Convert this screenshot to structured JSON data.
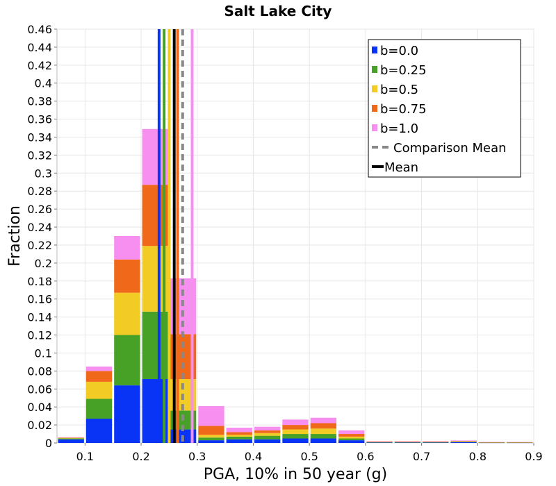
{
  "chart_data": {
    "type": "bar",
    "title": "Salt Lake City",
    "xlabel": "PGA, 10% in 50 year (g)",
    "ylabel": "Fraction",
    "xlim": [
      0.05,
      0.9
    ],
    "ylim": [
      0,
      0.46
    ],
    "xticks": [
      "0.1",
      "0.2",
      "0.3",
      "0.4",
      "0.5",
      "0.6",
      "0.7",
      "0.8",
      "0.9"
    ],
    "xtick_values": [
      0.1,
      0.2,
      0.3,
      0.4,
      0.5,
      0.6,
      0.7,
      0.8,
      0.9
    ],
    "yticks": [
      "0",
      "0.02",
      "0.04",
      "0.06",
      "0.08",
      "0.1",
      "0.12",
      "0.14",
      "0.16",
      "0.18",
      "0.2",
      "0.22",
      "0.24",
      "0.26",
      "0.28",
      "0.3",
      "0.32",
      "0.34",
      "0.36",
      "0.38",
      "0.4",
      "0.42",
      "0.44",
      "0.46"
    ],
    "ytick_values": [
      0,
      0.02,
      0.04,
      0.06,
      0.08,
      0.1,
      0.12,
      0.14,
      0.16,
      0.18,
      0.2,
      0.22,
      0.24,
      0.26,
      0.28,
      0.3,
      0.32,
      0.34,
      0.36,
      0.38,
      0.4,
      0.42,
      0.44,
      0.46
    ],
    "grid": true,
    "stacked": true,
    "bin_width": 0.05,
    "bin_centers": [
      0.075,
      0.125,
      0.175,
      0.225,
      0.275,
      0.325,
      0.375,
      0.425,
      0.475,
      0.525,
      0.575,
      0.625,
      0.675,
      0.725,
      0.775,
      0.825,
      0.875
    ],
    "series": [
      {
        "name": "b=0.0",
        "color": "#0a34f5",
        "values": [
          0.004,
          0.027,
          0.064,
          0.071,
          0.015,
          0.003,
          0.004,
          0.004,
          0.005,
          0.005,
          0.003,
          0.0005,
          0.0005,
          0.0005,
          0.0008,
          0.0003,
          0.0003
        ]
      },
      {
        "name": "b=0.25",
        "color": "#47a127",
        "values": [
          0.001,
          0.022,
          0.056,
          0.075,
          0.021,
          0.003,
          0.003,
          0.004,
          0.005,
          0.005,
          0.002,
          0.0003,
          0.0003,
          0.0003,
          0.0005,
          0.0002,
          0.0002
        ]
      },
      {
        "name": "b=0.5",
        "color": "#f2cb25",
        "values": [
          0.0005,
          0.019,
          0.047,
          0.073,
          0.035,
          0.003,
          0.002,
          0.003,
          0.005,
          0.006,
          0.002,
          0.0003,
          0.0003,
          0.0003,
          0.0004,
          0.0002,
          0.0002
        ]
      },
      {
        "name": "b=0.75",
        "color": "#f0681a",
        "values": [
          0.0005,
          0.012,
          0.037,
          0.068,
          0.05,
          0.01,
          0.003,
          0.003,
          0.005,
          0.006,
          0.003,
          0.0004,
          0.0004,
          0.0004,
          0.0005,
          0.0002,
          0.0002
        ]
      },
      {
        "name": "b=1.0",
        "color": "#f78ff0",
        "values": [
          0.0003,
          0.005,
          0.026,
          0.062,
          0.062,
          0.022,
          0.005,
          0.004,
          0.006,
          0.006,
          0.004,
          0.0005,
          0.0005,
          0.0005,
          0.0006,
          0.0002,
          0.0002
        ]
      }
    ],
    "mean_lines": [
      {
        "series": "b=0.0",
        "x": 0.232,
        "color": "#0a34f5"
      },
      {
        "series": "b=0.25",
        "x": 0.241,
        "color": "#47a127"
      },
      {
        "series": "b=0.5",
        "x": 0.25,
        "color": "#f2cb25"
      },
      {
        "series": "b=0.75",
        "x": 0.265,
        "color": "#f0681a"
      },
      {
        "series": "b=1.0",
        "x": 0.291,
        "color": "#f78ff0"
      }
    ],
    "mean_color": "#000000",
    "mean_x": 0.259,
    "comparison_mean_color": "#888888",
    "comparison_mean_x": 0.274,
    "legend": {
      "placement": "top-right",
      "entries": [
        {
          "label": "b=0.0",
          "color": "#0a34f5",
          "kind": "box"
        },
        {
          "label": "b=0.25",
          "color": "#47a127",
          "kind": "box"
        },
        {
          "label": "b=0.5",
          "color": "#f2cb25",
          "kind": "box"
        },
        {
          "label": "b=0.75",
          "color": "#f0681a",
          "kind": "box"
        },
        {
          "label": "b=1.0",
          "color": "#f78ff0",
          "kind": "box"
        },
        {
          "label": "Comparison Mean",
          "color": "#888888",
          "kind": "dashed"
        },
        {
          "label": "Mean",
          "color": "#000000",
          "kind": "solid"
        }
      ]
    }
  }
}
